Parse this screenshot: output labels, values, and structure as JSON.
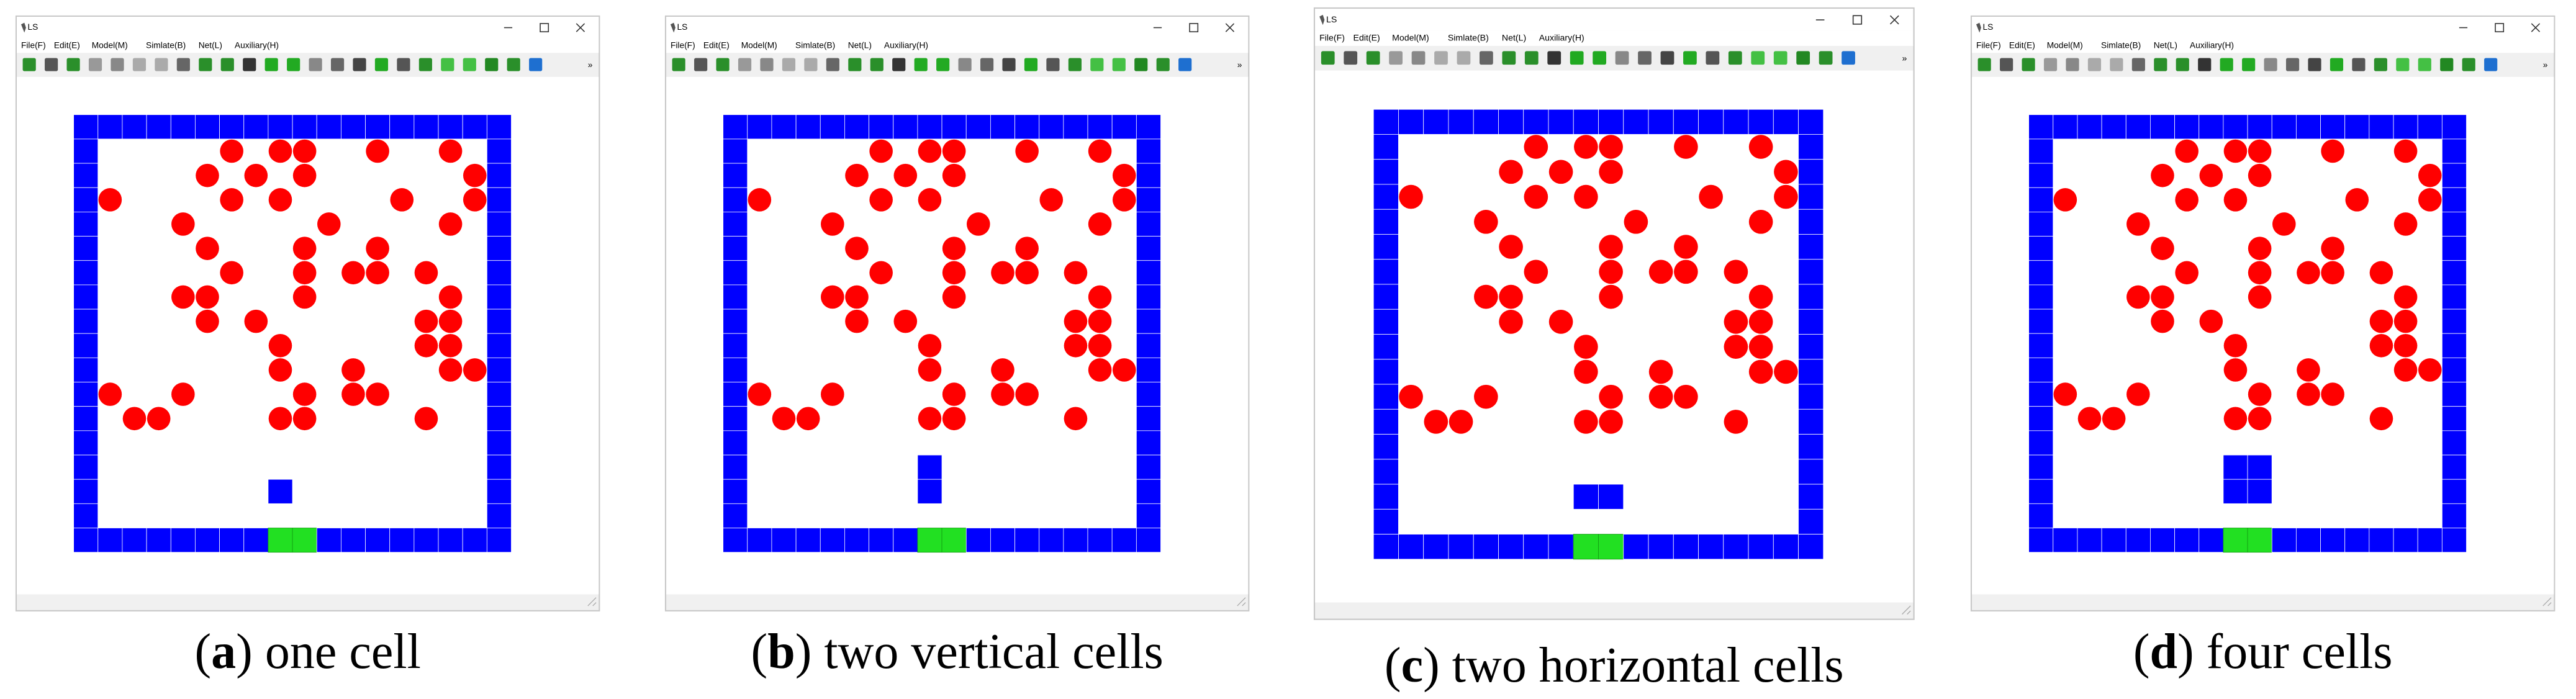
{
  "panels": [
    {
      "window_title": "LS",
      "menu": [
        "File(F)",
        "Edit(E)",
        "Model(M)",
        "Simlate(B)",
        "Net(L)",
        "Auxiliary(H)"
      ],
      "caption": {
        "open": "(",
        "letter": "a",
        "text": ") one cell"
      }
    },
    {
      "window_title": "LS",
      "menu": [
        "File(F)",
        "Edit(E)",
        "Model(M)",
        "Simlate(B)",
        "Net(L)",
        "Auxiliary(H)"
      ],
      "caption": {
        "open": "(",
        "letter": "b",
        "text": ") two vertical cells"
      }
    },
    {
      "window_title": "LS",
      "menu": [
        "File(F)",
        "Edit(E)",
        "Model(M)",
        "Simlate(B)",
        "Net(L)",
        "Auxiliary(H)"
      ],
      "caption": {
        "open": "(",
        "letter": "c",
        "text": ") two horizontal cells"
      }
    },
    {
      "window_title": "LS",
      "menu": [
        "File(F)",
        "Edit(E)",
        "Model(M)",
        "Simlate(B)",
        "Net(L)",
        "Auxiliary(H)"
      ],
      "caption": {
        "open": "(",
        "letter": "d",
        "text": ") four cells"
      }
    }
  ]
}
